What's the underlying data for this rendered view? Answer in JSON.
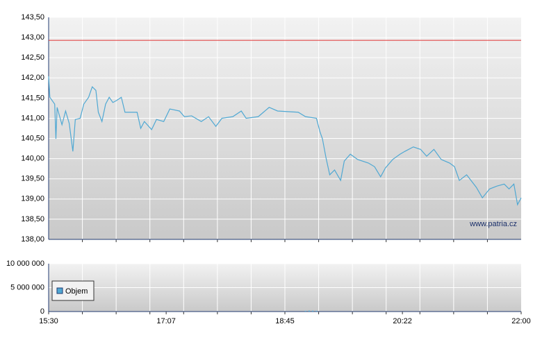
{
  "chart_data": [
    {
      "type": "line",
      "source": "www.patria.cz",
      "xlim": [
        930,
        1320
      ],
      "ylim": [
        138.0,
        143.5
      ],
      "yticks": [
        {
          "value": 138.0,
          "label": "138,00"
        },
        {
          "value": 138.5,
          "label": "138,50"
        },
        {
          "value": 139.0,
          "label": "139,00"
        },
        {
          "value": 139.5,
          "label": "139,50"
        },
        {
          "value": 140.0,
          "label": "140,00"
        },
        {
          "value": 140.5,
          "label": "140,50"
        },
        {
          "value": 141.0,
          "label": "141,00"
        },
        {
          "value": 141.5,
          "label": "141,50"
        },
        {
          "value": 142.0,
          "label": "142,00"
        },
        {
          "value": 142.5,
          "label": "142,50"
        },
        {
          "value": 143.0,
          "label": "143,00"
        },
        {
          "value": 143.5,
          "label": "143,50"
        }
      ],
      "reference_line": {
        "value": 142.93,
        "color": "#e03030"
      },
      "grid": true,
      "series": [
        {
          "color": "#4fa8d3",
          "x": [
            930,
            931,
            935,
            936,
            937,
            941,
            944,
            947,
            950,
            952,
            956,
            959,
            963,
            966,
            969,
            971,
            974,
            977,
            980,
            983,
            986,
            990,
            993,
            1003,
            1006,
            1009,
            1015,
            1019,
            1025,
            1030,
            1038,
            1042,
            1048,
            1056,
            1062,
            1068,
            1073,
            1082,
            1089,
            1093,
            1103,
            1112,
            1119,
            1136,
            1142,
            1151,
            1154,
            1156,
            1159,
            1162,
            1166,
            1171,
            1174,
            1179,
            1185,
            1194,
            1199,
            1204,
            1208,
            1214,
            1220,
            1224,
            1231,
            1237,
            1242,
            1248,
            1254,
            1261,
            1265,
            1269,
            1275,
            1283,
            1288,
            1294,
            1300,
            1306,
            1310,
            1314,
            1317,
            1320
          ],
          "values": [
            142.04,
            141.52,
            141.35,
            140.49,
            141.27,
            140.84,
            141.18,
            140.87,
            140.18,
            140.97,
            141.0,
            141.35,
            141.52,
            141.78,
            141.69,
            141.15,
            140.92,
            141.35,
            141.52,
            141.39,
            141.44,
            141.52,
            141.15,
            141.15,
            140.75,
            140.92,
            140.72,
            140.97,
            140.92,
            141.23,
            141.18,
            141.04,
            141.06,
            140.92,
            141.04,
            140.8,
            141.0,
            141.04,
            141.18,
            141.0,
            141.04,
            141.27,
            141.18,
            141.15,
            141.04,
            141.0,
            140.66,
            140.49,
            140.01,
            139.6,
            139.72,
            139.46,
            139.94,
            140.11,
            139.98,
            139.89,
            139.8,
            139.55,
            139.77,
            139.98,
            140.11,
            140.18,
            140.29,
            140.23,
            140.06,
            140.23,
            139.98,
            139.89,
            139.8,
            139.46,
            139.6,
            139.29,
            139.03,
            139.25,
            139.32,
            139.37,
            139.25,
            139.37,
            138.86,
            139.03
          ]
        }
      ]
    },
    {
      "type": "bar",
      "xlim": [
        930,
        1320
      ],
      "xticks": [
        {
          "value": 930,
          "label": "15:30"
        },
        {
          "value": 1027,
          "label": "17:07"
        },
        {
          "value": 1125,
          "label": "18:45"
        },
        {
          "value": 1222,
          "label": "20:22"
        },
        {
          "value": 1320,
          "label": "22:00"
        }
      ],
      "ylim": [
        0,
        10000000
      ],
      "yticks": [
        0,
        {
          "value": 5000000,
          "label": "5 000 000"
        },
        {
          "value": 10000000,
          "label": "10 000 000"
        }
      ],
      "grid": true,
      "series": [
        {
          "name": "Objem",
          "color": "#4fa8d3",
          "x": [
            1142,
            1145,
            1148,
            1151
          ],
          "values": [
            150000,
            200000,
            180000,
            160000
          ]
        }
      ]
    }
  ]
}
